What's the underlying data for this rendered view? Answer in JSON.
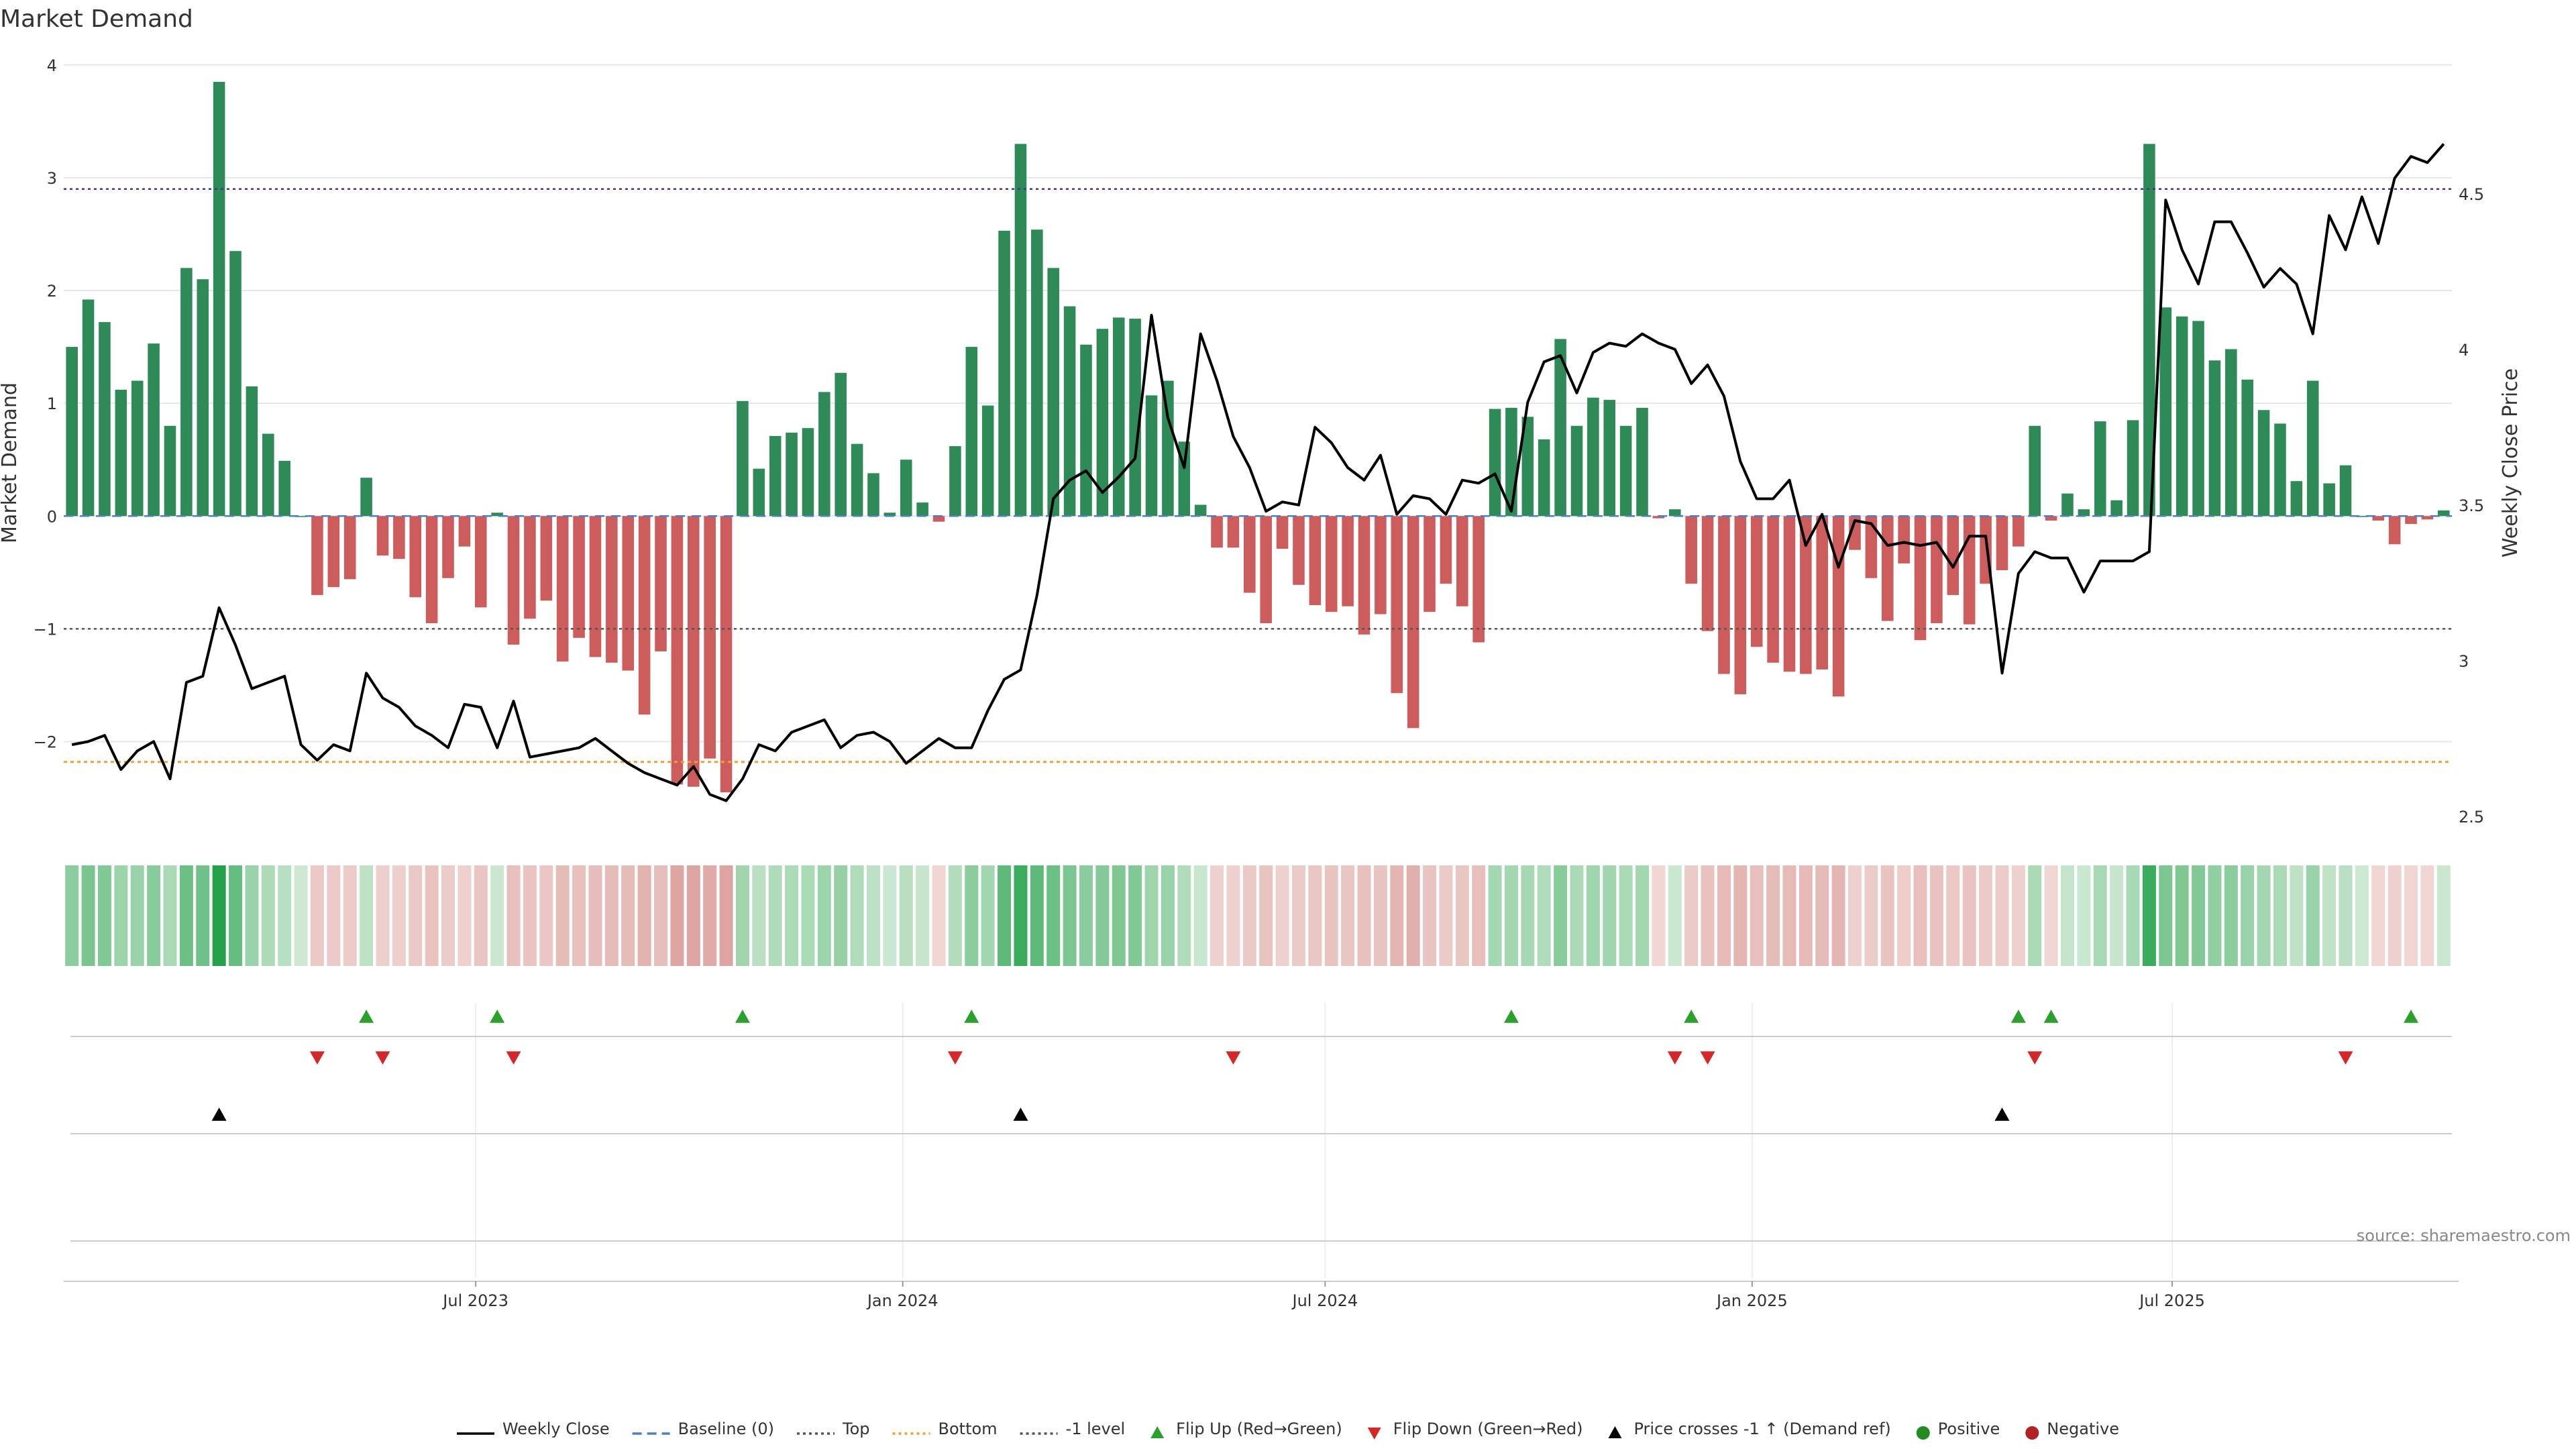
{
  "chart_data": {
    "type": "bar",
    "title": "Market Demand",
    "ylabel_left": "Market Demand",
    "ylabel_right": "Weekly Close Price",
    "ylim_left": [
      -2.8,
      4.1
    ],
    "ylim_right": [
      2.45,
      4.95
    ],
    "yticks_left": [
      "4",
      "3",
      "2",
      "1",
      "0",
      "−1",
      "−2"
    ],
    "ytick_values_left": [
      4,
      3,
      2,
      1,
      0,
      -1,
      -2
    ],
    "yticks_right": [
      "4.5",
      "4",
      "3.5",
      "3",
      "2.5"
    ],
    "ytick_values_right": [
      4.5,
      4,
      3.5,
      3,
      2.5
    ],
    "x_start": "2023-01-08",
    "x_end": "2025-10-26",
    "xticks": [
      {
        "label": "Jul 2023",
        "date": "2023-07-01"
      },
      {
        "label": "Jan 2024",
        "date": "2024-01-01"
      },
      {
        "label": "Jul 2024",
        "date": "2024-07-01"
      },
      {
        "label": "Jan 2025",
        "date": "2025-01-01"
      },
      {
        "label": "Jul 2025",
        "date": "2025-07-01"
      }
    ],
    "reference_lines": {
      "top": 2.9,
      "bottom": -2.18,
      "minus_one": -1,
      "baseline": 0
    },
    "demand": [
      1.5,
      1.92,
      1.72,
      1.12,
      1.2,
      1.53,
      0.8,
      2.2,
      2.1,
      3.85,
      2.35,
      1.15,
      0.73,
      0.49,
      0.0,
      -0.7,
      -0.63,
      -0.56,
      0.34,
      -0.35,
      -0.38,
      -0.72,
      -0.95,
      -0.55,
      -0.27,
      -0.81,
      0.03,
      -1.14,
      -0.91,
      -0.75,
      -1.29,
      -1.08,
      -1.25,
      -1.3,
      -1.37,
      -1.76,
      -1.2,
      -2.38,
      -2.4,
      -2.15,
      -2.45,
      1.02,
      0.42,
      0.71,
      0.74,
      0.78,
      1.1,
      1.27,
      0.64,
      0.38,
      0.03,
      0.5,
      0.12,
      -0.05,
      0.62,
      1.5,
      0.98,
      2.53,
      3.3,
      2.54,
      2.2,
      1.86,
      1.52,
      1.66,
      1.76,
      1.75,
      1.07,
      1.2,
      0.66,
      0.1,
      -0.28,
      -0.28,
      -0.68,
      -0.95,
      -0.29,
      -0.61,
      -0.79,
      -0.85,
      -0.8,
      -1.05,
      -0.87,
      -1.57,
      -1.88,
      -0.85,
      -0.6,
      -0.8,
      -1.12,
      0.95,
      0.96,
      0.88,
      0.68,
      1.57,
      0.8,
      1.05,
      1.03,
      0.8,
      0.96,
      -0.02,
      0.06,
      -0.6,
      -1.02,
      -1.4,
      -1.58,
      -1.16,
      -1.3,
      -1.38,
      -1.4,
      -1.36,
      -1.6,
      -0.3,
      -0.55,
      -0.93,
      -0.42,
      -1.1,
      -0.95,
      -0.7,
      -0.96,
      -0.6,
      -0.48,
      -0.27,
      0.8,
      -0.04,
      0.2,
      0.06,
      0.84,
      0.14,
      0.85,
      3.3,
      1.85,
      1.77,
      1.73,
      1.38,
      1.48,
      1.21,
      0.94,
      0.82,
      0.31,
      1.2,
      0.29,
      0.45,
      0.0,
      -0.04,
      -0.25,
      -0.07,
      -0.03,
      0.05
    ],
    "price": [
      2.73,
      2.74,
      2.76,
      2.65,
      2.71,
      2.74,
      2.62,
      2.93,
      2.95,
      3.17,
      3.05,
      2.91,
      2.93,
      2.95,
      2.73,
      2.68,
      2.73,
      2.71,
      2.96,
      2.88,
      2.85,
      2.79,
      2.76,
      2.72,
      2.86,
      2.85,
      2.72,
      2.87,
      2.69,
      2.7,
      2.71,
      2.72,
      2.75,
      2.71,
      2.67,
      2.64,
      2.62,
      2.6,
      2.66,
      2.57,
      2.55,
      2.62,
      2.73,
      2.71,
      2.77,
      2.79,
      2.81,
      2.72,
      2.76,
      2.77,
      2.74,
      2.67,
      2.71,
      2.75,
      2.72,
      2.72,
      2.84,
      2.94,
      2.97,
      3.21,
      3.52,
      3.58,
      3.61,
      3.54,
      3.59,
      3.65,
      4.11,
      3.78,
      3.62,
      4.05,
      3.9,
      3.72,
      3.62,
      3.48,
      3.51,
      3.5,
      3.75,
      3.7,
      3.62,
      3.58,
      3.66,
      3.47,
      3.53,
      3.52,
      3.47,
      3.58,
      3.57,
      3.6,
      3.48,
      3.83,
      3.96,
      3.98,
      3.86,
      3.99,
      4.02,
      4.01,
      4.05,
      4.02,
      4.0,
      3.89,
      3.95,
      3.85,
      3.64,
      3.52,
      3.52,
      3.58,
      3.37,
      3.47,
      3.3,
      3.45,
      3.44,
      3.37,
      3.38,
      3.37,
      3.38,
      3.3,
      3.4,
      3.4,
      2.96,
      3.28,
      3.35,
      3.33,
      3.33,
      3.22,
      3.32,
      3.32,
      3.32,
      3.35,
      4.48,
      4.32,
      4.21,
      4.41,
      4.41,
      4.31,
      4.2,
      4.26,
      4.21,
      4.05,
      4.43,
      4.32,
      4.49,
      4.34,
      4.55,
      4.62,
      4.6,
      4.66
    ]
  },
  "heat_strip": {
    "colors_note": "weekly cells colored by demand sign and strength"
  },
  "signals": {
    "flip_up_indices": [
      18,
      26,
      41,
      55,
      88,
      99,
      119,
      121,
      143
    ],
    "flip_down_indices": [
      15,
      19,
      27,
      54,
      71,
      98,
      100,
      120,
      139
    ],
    "price_cross_indices": [
      9,
      58,
      118
    ]
  },
  "source": "source: sharemaestro.com",
  "legend": [
    {
      "label": "Weekly Close",
      "kind": "line-solid",
      "color": "#000000"
    },
    {
      "label": "Baseline (0)",
      "kind": "line-dashed",
      "color": "#4a80c8"
    },
    {
      "label": "Top",
      "kind": "line-dotted",
      "color": "#555555"
    },
    {
      "label": "Bottom",
      "kind": "line-dotted",
      "color": "#f0a030"
    },
    {
      "label": "-1 level",
      "kind": "line-dotted",
      "color": "#555555"
    },
    {
      "label": "Flip Up (Red→Green)",
      "kind": "tri-up",
      "color": "#2ca02c"
    },
    {
      "label": "Flip Down (Green→Red)",
      "kind": "tri-down",
      "color": "#d62728"
    },
    {
      "label": "Price crosses -1 ↑ (Demand ref)",
      "kind": "tri-up",
      "color": "#000000"
    },
    {
      "label": "Positive",
      "kind": "dot",
      "color": "#228b22"
    },
    {
      "label": "Negative",
      "kind": "dot",
      "color": "#b22222"
    }
  ],
  "colors": {
    "positive_bar": "#2e8b57",
    "negative_bar": "#cd5c5c",
    "grid": "#e6e6e6"
  }
}
